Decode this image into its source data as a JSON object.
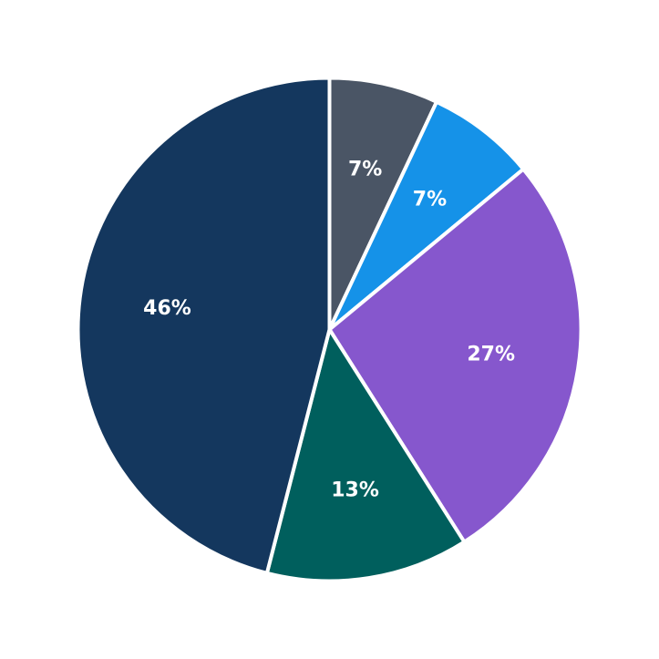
{
  "chart_data": {
    "type": "pie",
    "title": "",
    "start": "12 o'clock",
    "direction": "clockwise",
    "legend": "none",
    "slices": [
      {
        "value": 7,
        "label": "7%",
        "color": "#4a5565"
      },
      {
        "value": 7,
        "label": "7%",
        "color": "#1592e8"
      },
      {
        "value": 27,
        "label": "27%",
        "color": "#8657cd"
      },
      {
        "value": 13,
        "label": "13%",
        "color": "#005f5d"
      },
      {
        "value": 46,
        "label": "46%",
        "color": "#14375e"
      }
    ]
  }
}
